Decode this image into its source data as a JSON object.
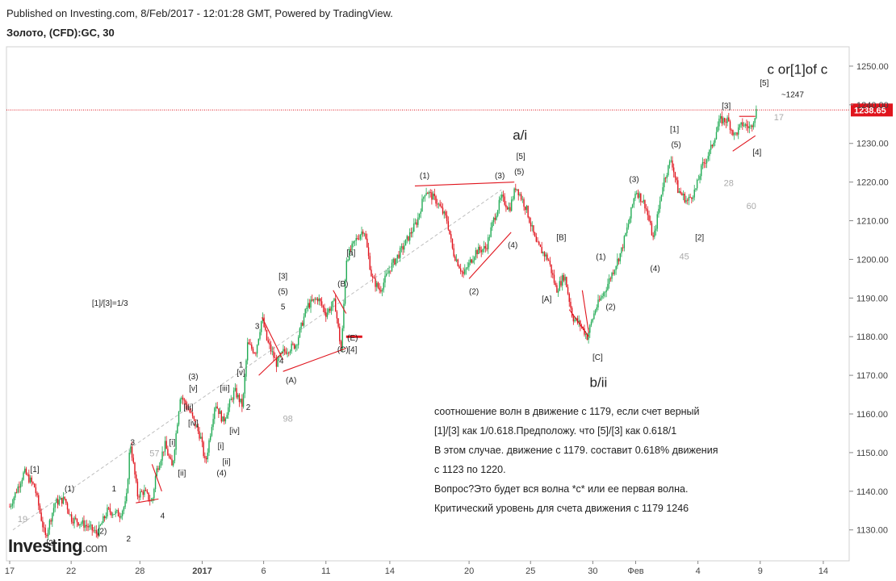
{
  "header": {
    "published": "Published on Investing.com, 8/Feb/2017 - 12:01:28 GMT, Powered by TradingView.",
    "symbol": "Золото, (CFD):GC, 30"
  },
  "brand": {
    "name": "Investing",
    "domain": ".com"
  },
  "chart_data": {
    "type": "candlestick",
    "y_axis": {
      "min": 1122,
      "max": 1255,
      "ticks": [
        1130,
        1140,
        1150,
        1160,
        1170,
        1180,
        1190,
        1200,
        1210,
        1220,
        1230,
        1240,
        1250
      ],
      "side": "right"
    },
    "x_axis": {
      "range": [
        0,
        1042
      ],
      "ticks": [
        {
          "pos": 4,
          "label": "17",
          "bold": false
        },
        {
          "pos": 80,
          "label": "22",
          "bold": false
        },
        {
          "pos": 165,
          "label": "28",
          "bold": false
        },
        {
          "pos": 242,
          "label": "2017",
          "bold": true
        },
        {
          "pos": 318,
          "label": "6",
          "bold": false
        },
        {
          "pos": 395,
          "label": "11",
          "bold": false
        },
        {
          "pos": 474,
          "label": "14",
          "bold": false
        },
        {
          "pos": 572,
          "label": "20",
          "bold": false
        },
        {
          "pos": 648,
          "label": "25",
          "bold": false
        },
        {
          "pos": 725,
          "label": "30",
          "bold": false
        },
        {
          "pos": 778,
          "label": "Фев",
          "bold": false
        },
        {
          "pos": 855,
          "label": "4",
          "bold": false
        },
        {
          "pos": 932,
          "label": "9",
          "bold": false
        },
        {
          "pos": 1010,
          "label": "14",
          "bold": false
        }
      ]
    },
    "current_price": {
      "value": 1238.65,
      "label": "1238.65",
      "color": "#e0141d"
    },
    "colors": {
      "up": "#22ab55",
      "down": "#e0141d",
      "annotation_lines": "#e0141d",
      "trend_line": "#bdbdbd",
      "label_grey": "#aaaaaa"
    },
    "price_path": [
      [
        4,
        1136
      ],
      [
        22,
        1145
      ],
      [
        35,
        1141
      ],
      [
        48,
        1128
      ],
      [
        60,
        1137
      ],
      [
        72,
        1138
      ],
      [
        80,
        1133
      ],
      [
        100,
        1131
      ],
      [
        112,
        1129
      ],
      [
        125,
        1135
      ],
      [
        140,
        1134
      ],
      [
        148,
        1137
      ],
      [
        153,
        1153
      ],
      [
        162,
        1139
      ],
      [
        170,
        1140
      ],
      [
        180,
        1137
      ],
      [
        185,
        1145
      ],
      [
        196,
        1152
      ],
      [
        205,
        1146
      ],
      [
        215,
        1165
      ],
      [
        228,
        1160
      ],
      [
        240,
        1154
      ],
      [
        246,
        1147
      ],
      [
        258,
        1163
      ],
      [
        268,
        1158
      ],
      [
        282,
        1166
      ],
      [
        292,
        1162
      ],
      [
        298,
        1178
      ],
      [
        308,
        1176
      ],
      [
        316,
        1185
      ],
      [
        322,
        1179
      ],
      [
        334,
        1173
      ],
      [
        342,
        1176
      ],
      [
        358,
        1178
      ],
      [
        372,
        1188
      ],
      [
        385,
        1190
      ],
      [
        395,
        1186
      ],
      [
        406,
        1189
      ],
      [
        414,
        1176
      ],
      [
        420,
        1200
      ],
      [
        432,
        1205
      ],
      [
        442,
        1208
      ],
      [
        452,
        1195
      ],
      [
        462,
        1192
      ],
      [
        475,
        1198
      ],
      [
        490,
        1203
      ],
      [
        508,
        1210
      ],
      [
        518,
        1218
      ],
      [
        532,
        1215
      ],
      [
        545,
        1210
      ],
      [
        552,
        1202
      ],
      [
        565,
        1196
      ],
      [
        580,
        1202
      ],
      [
        593,
        1203
      ],
      [
        602,
        1210
      ],
      [
        612,
        1216
      ],
      [
        622,
        1213
      ],
      [
        630,
        1219
      ],
      [
        643,
        1213
      ],
      [
        655,
        1204
      ],
      [
        670,
        1200
      ],
      [
        680,
        1192
      ],
      [
        690,
        1196
      ],
      [
        700,
        1185
      ],
      [
        710,
        1183
      ],
      [
        718,
        1180
      ],
      [
        728,
        1187
      ],
      [
        740,
        1192
      ],
      [
        752,
        1198
      ],
      [
        760,
        1202
      ],
      [
        770,
        1210
      ],
      [
        778,
        1218
      ],
      [
        790,
        1214
      ],
      [
        800,
        1205
      ],
      [
        812,
        1220
      ],
      [
        822,
        1226
      ],
      [
        830,
        1218
      ],
      [
        842,
        1215
      ],
      [
        852,
        1218
      ],
      [
        860,
        1224
      ],
      [
        870,
        1228
      ],
      [
        882,
        1236
      ],
      [
        892,
        1236
      ],
      [
        900,
        1232
      ],
      [
        910,
        1235
      ],
      [
        920,
        1234
      ],
      [
        928,
        1239
      ]
    ],
    "trend_line": {
      "from": [
        8,
        1130
      ],
      "to": [
        612,
        1218
      ]
    },
    "annotation_lines": [
      [
        [
          505,
          1219
        ],
        [
          628,
          1220
        ]
      ],
      [
        [
          572,
          1195
        ],
        [
          624,
          1207
        ]
      ],
      [
        [
          160,
          1137
        ],
        [
          188,
          1138
        ]
      ],
      [
        [
          180,
          1147
        ],
        [
          192,
          1140
        ]
      ],
      [
        [
          316,
          1185
        ],
        [
          342,
          1174
        ]
      ],
      [
        [
          312,
          1170
        ],
        [
          342,
          1176
        ]
      ],
      [
        [
          342,
          1171
        ],
        [
          420,
          1177
        ]
      ],
      [
        [
          404,
          1192
        ],
        [
          420,
          1186
        ]
      ],
      [
        [
          696,
          1187
        ],
        [
          720,
          1180
        ]
      ],
      [
        [
          712,
          1192
        ],
        [
          720,
          1181
        ]
      ],
      [
        [
          898,
          1228
        ],
        [
          926,
          1232
        ]
      ],
      [
        [
          906,
          1237
        ],
        [
          926,
          1237
        ]
      ]
    ],
    "annotation_thick": [
      [
        420,
        1180
      ],
      [
        440,
        1180
      ]
    ],
    "wave_labels": [
      {
        "x": 35,
        "y": 1145,
        "text": "[1]"
      },
      {
        "x": 78,
        "y": 1140,
        "text": "(1)"
      },
      {
        "x": 55,
        "y": 1126,
        "text": "[2]"
      },
      {
        "x": 118,
        "y": 1129,
        "text": "(2)"
      },
      {
        "x": 133,
        "y": 1140,
        "text": "1"
      },
      {
        "x": 151,
        "y": 1127,
        "text": "2"
      },
      {
        "x": 156,
        "y": 1152,
        "text": "3"
      },
      {
        "x": 193,
        "y": 1133,
        "text": "4"
      },
      {
        "x": 205,
        "y": 1152,
        "text": "[i]"
      },
      {
        "x": 217,
        "y": 1144,
        "text": "[ii]"
      },
      {
        "x": 225,
        "y": 1161,
        "text": "[iii]"
      },
      {
        "x": 231,
        "y": 1157,
        "text": "[iv]"
      },
      {
        "x": 231,
        "y": 1166,
        "text": "[v]"
      },
      {
        "x": 231,
        "y": 1169,
        "text": "(3)"
      },
      {
        "x": 266,
        "y": 1144,
        "text": "(4)"
      },
      {
        "x": 265,
        "y": 1151,
        "text": "[i]"
      },
      {
        "x": 272,
        "y": 1147,
        "text": "[ii]"
      },
      {
        "x": 270,
        "y": 1166,
        "text": "[iii]"
      },
      {
        "x": 282,
        "y": 1155,
        "text": "[iv]"
      },
      {
        "x": 290,
        "y": 1170,
        "text": "[v]"
      },
      {
        "x": 290,
        "y": 1172,
        "text": "1"
      },
      {
        "x": 299,
        "y": 1161,
        "text": "2"
      },
      {
        "x": 310,
        "y": 1182,
        "text": "3"
      },
      {
        "x": 340,
        "y": 1173,
        "text": "4"
      },
      {
        "x": 342,
        "y": 1187,
        "text": "5"
      },
      {
        "x": 342,
        "y": 1191,
        "text": "(5)"
      },
      {
        "x": 342,
        "y": 1195,
        "text": "[3]"
      },
      {
        "x": 352,
        "y": 1168,
        "text": "(A)"
      },
      {
        "x": 416,
        "y": 1193,
        "text": "(B)"
      },
      {
        "x": 416,
        "y": 1176,
        "text": "(C)"
      },
      {
        "x": 428,
        "y": 1179,
        "text": "(E)"
      },
      {
        "x": 428,
        "y": 1176,
        "text": "[4]"
      },
      {
        "x": 426,
        "y": 1201,
        "text": "[a]"
      },
      {
        "x": 517,
        "y": 1221,
        "text": "(1)"
      },
      {
        "x": 578,
        "y": 1191,
        "text": "(2)"
      },
      {
        "x": 610,
        "y": 1221,
        "text": "(3)"
      },
      {
        "x": 626,
        "y": 1203,
        "text": "(4)"
      },
      {
        "x": 634,
        "y": 1222,
        "text": "(5)"
      },
      {
        "x": 636,
        "y": 1226,
        "text": "[5]"
      },
      {
        "x": 686,
        "y": 1205,
        "text": "[B]"
      },
      {
        "x": 668,
        "y": 1189,
        "text": "[A]"
      },
      {
        "x": 731,
        "y": 1174,
        "text": "[C]"
      },
      {
        "x": 735,
        "y": 1200,
        "text": "(1)"
      },
      {
        "x": 747,
        "y": 1187,
        "text": "(2)"
      },
      {
        "x": 776,
        "y": 1220,
        "text": "(3)"
      },
      {
        "x": 802,
        "y": 1197,
        "text": "(4)"
      },
      {
        "x": 828,
        "y": 1229,
        "text": "(5)"
      },
      {
        "x": 826,
        "y": 1233,
        "text": "[1]"
      },
      {
        "x": 857,
        "y": 1205,
        "text": "[2]"
      },
      {
        "x": 890,
        "y": 1239,
        "text": "[3]"
      },
      {
        "x": 928,
        "y": 1227,
        "text": "[4]"
      },
      {
        "x": 937,
        "y": 1245,
        "text": "[5]"
      },
      {
        "x": 128,
        "y": 1188,
        "text": "[1]/[3]=1/3"
      }
    ],
    "big_labels": [
      {
        "x": 635,
        "y": 1231,
        "text": "a/i"
      },
      {
        "x": 732,
        "y": 1167,
        "text": "b/ii"
      },
      {
        "x": 978,
        "y": 1248,
        "text": "c or[1]of c"
      }
    ],
    "small_labels": [
      {
        "x": 972,
        "y": 1242,
        "text": "~1247"
      }
    ],
    "grey_labels": [
      {
        "x": 20,
        "y": 1132,
        "text": "19"
      },
      {
        "x": 183,
        "y": 1149,
        "text": "57"
      },
      {
        "x": 348,
        "y": 1158,
        "text": "98"
      },
      {
        "x": 838,
        "y": 1200,
        "text": "45"
      },
      {
        "x": 893,
        "y": 1219,
        "text": "28"
      },
      {
        "x": 921,
        "y": 1213,
        "text": "60"
      },
      {
        "x": 955,
        "y": 1236,
        "text": "17"
      }
    ]
  },
  "note": {
    "lines": [
      "соотношение волн в движение с 1179, если счет верный",
      "[1]/[3] как 1/0.618.Предположу. что [5]/[3] как 0.618/1",
      "В этом случае. движение с 1179. составит 0.618% движения",
      "с 1123 по 1220.",
      "Вопрос?Это будет вся волна *с* или ее первая волна.",
      "Критический уровень для счета движения с 1179  1246"
    ]
  }
}
